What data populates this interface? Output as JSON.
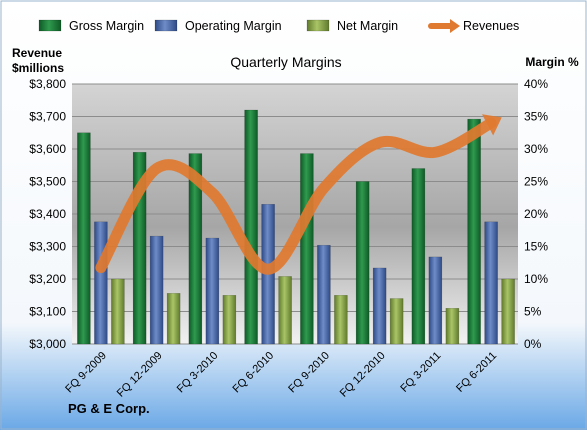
{
  "chart_data": {
    "type": "bar",
    "title": "Quarterly Margins",
    "company": "PG & E Corp.",
    "left_axis_label_line1": "Revenue",
    "left_axis_label_line2": "$millions",
    "right_axis_label": "Margin %",
    "categories": [
      "FQ 9-2009",
      "FQ 12-2009",
      "FQ 3-2010",
      "FQ 6-2010",
      "FQ 9-2010",
      "FQ 12-2010",
      "FQ 3-2011",
      "FQ 6-2011"
    ],
    "left_axis": {
      "min": 3000,
      "max": 3800,
      "ticks": [
        "$3,000",
        "$3,100",
        "$3,200",
        "$3,300",
        "$3,400",
        "$3,500",
        "$3,600",
        "$3,700",
        "$3,800"
      ]
    },
    "right_axis": {
      "min": 0,
      "max": 40,
      "ticks": [
        "0%",
        "5%",
        "10%",
        "15%",
        "20%",
        "25%",
        "30%",
        "35%",
        "40%"
      ]
    },
    "series": [
      {
        "name": "Gross Margin",
        "axis": "right",
        "color": "#1e7a3a",
        "values": [
          32.5,
          29.5,
          29.3,
          36.0,
          29.3,
          25.0,
          27.0,
          34.6
        ]
      },
      {
        "name": "Operating Margin",
        "axis": "right",
        "color": "#4a68a8",
        "values": [
          18.8,
          16.6,
          16.3,
          21.5,
          15.2,
          11.7,
          13.4,
          18.8
        ]
      },
      {
        "name": "Net Margin",
        "axis": "right",
        "color": "#8aaa4a",
        "values": [
          10.0,
          7.8,
          7.5,
          10.4,
          7.5,
          7.0,
          5.5,
          10.0
        ]
      },
      {
        "name": "Revenues",
        "axis": "left",
        "type": "line",
        "color": "#e07a30",
        "values": [
          3235,
          3540,
          3465,
          3230,
          3480,
          3620,
          3590,
          3680
        ]
      }
    ],
    "legend_position": "top",
    "grid": true
  }
}
